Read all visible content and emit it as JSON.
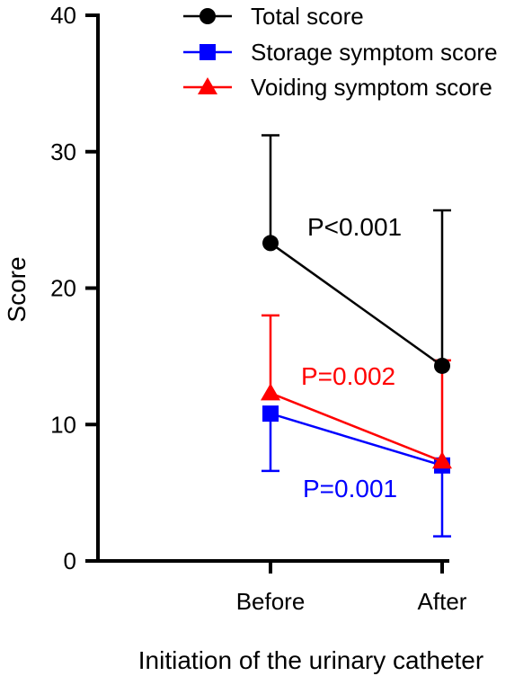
{
  "chart_data": {
    "type": "line",
    "title": "",
    "xlabel": "Initiation of the urinary catheter",
    "ylabel": "Score",
    "categories": [
      "Before",
      "After"
    ],
    "ylim": [
      0,
      40
    ],
    "yticks": [
      0,
      10,
      20,
      30,
      40
    ],
    "grid": false,
    "legend_position": "top-right",
    "series": [
      {
        "name": "Total score",
        "values": [
          23.3,
          14.3
        ],
        "error_up": [
          7.9,
          11.4
        ],
        "marker": "circle",
        "color": "#000000"
      },
      {
        "name": "Storage symptom score",
        "values": [
          10.8,
          7.0
        ],
        "error_down": [
          4.2,
          5.2
        ],
        "marker": "square",
        "color": "#0000ff"
      },
      {
        "name": "Voiding symptom score",
        "values": [
          12.3,
          7.3
        ],
        "error_up": [
          5.7,
          7.4
        ],
        "marker": "triangle",
        "color": "#ff0000"
      }
    ],
    "annotations": [
      {
        "text": "P<0.001",
        "color": "#000000"
      },
      {
        "text": "P=0.002",
        "color": "#ff0000"
      },
      {
        "text": "P=0.001",
        "color": "#0000ff"
      }
    ]
  }
}
